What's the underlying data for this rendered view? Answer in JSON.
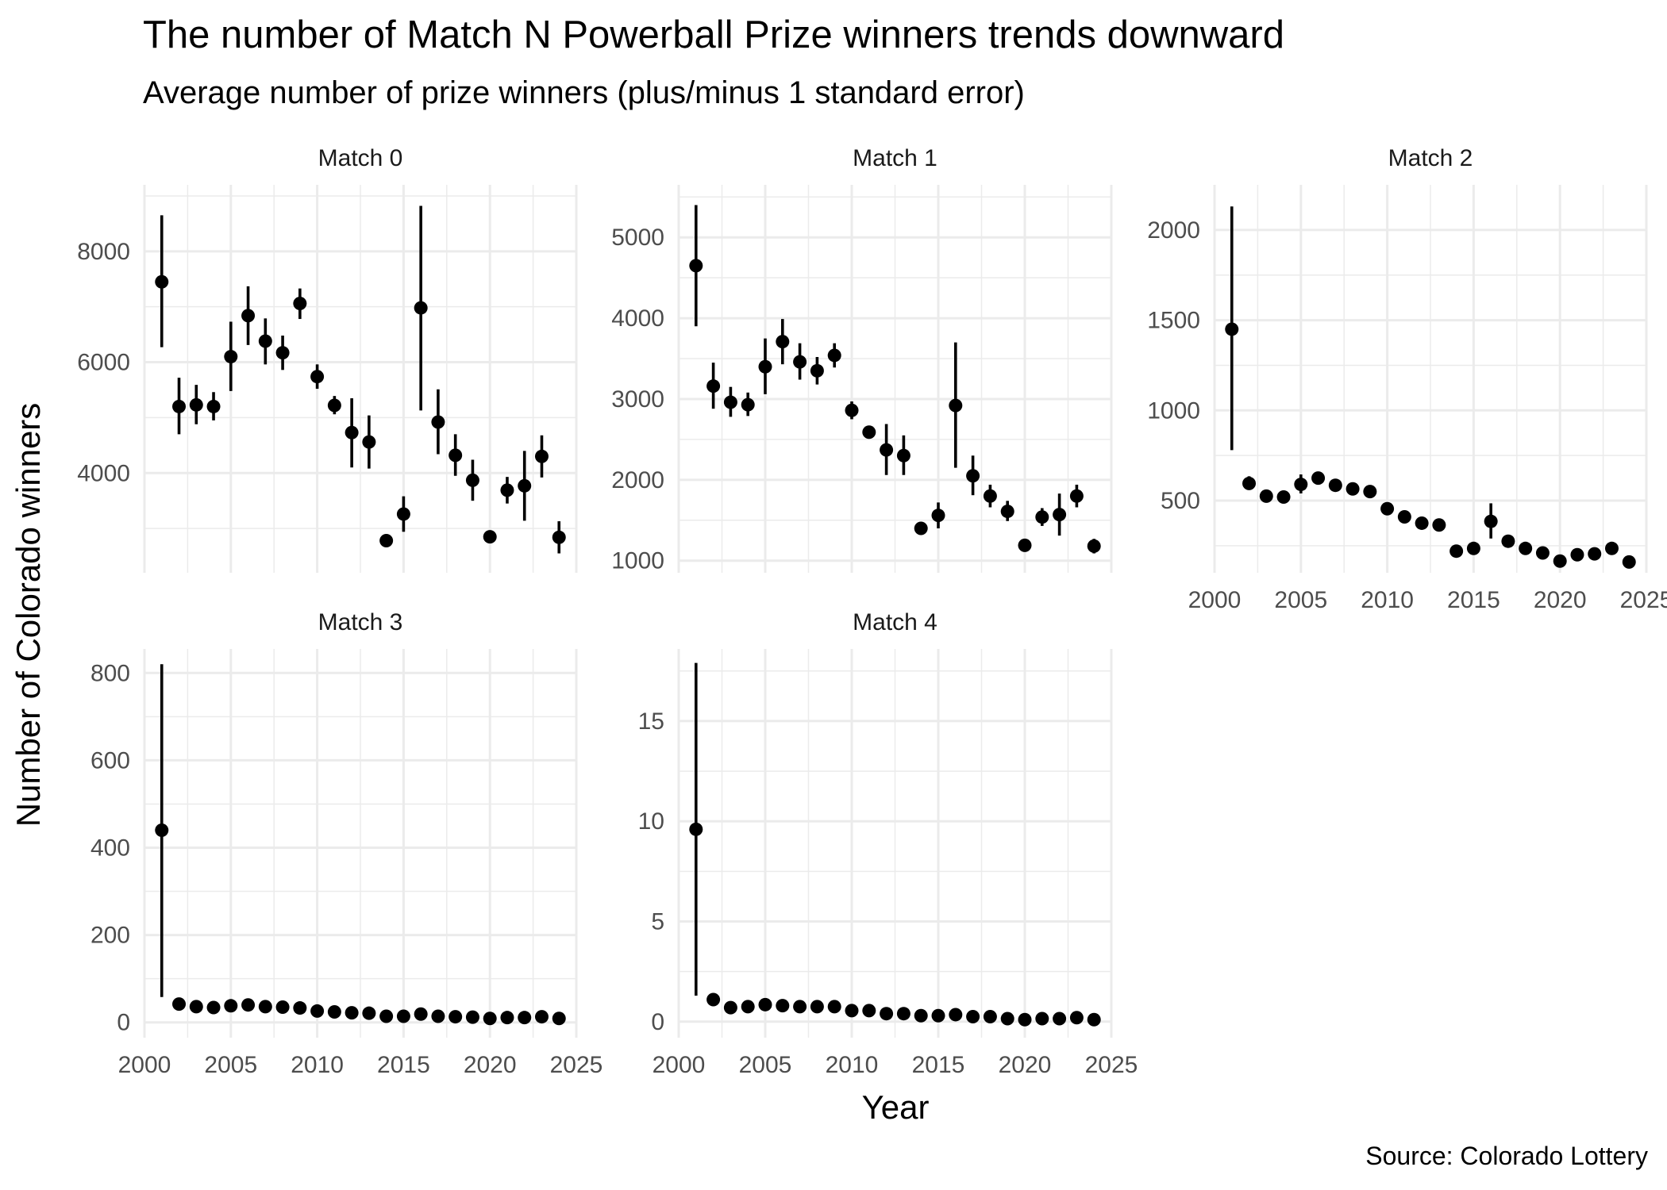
{
  "chart": {
    "title": "The number of Match N Powerball Prize winners trends downward",
    "subtitle": "Average number of prize winners (plus/minus 1 standard error)",
    "xlabel": "Year",
    "ylabel": "Number of Colorado winners",
    "caption": "Source: Colorado Lottery"
  },
  "chart_data": {
    "type": "scatter",
    "style": "point-range (mean with ±1 standard error bars), faceted small multiples, free y scales",
    "grid": true,
    "xlim": [
      2000,
      2025
    ],
    "x_ticks": [
      2000,
      2005,
      2010,
      2015,
      2020,
      2025
    ],
    "years": [
      2001,
      2002,
      2003,
      2004,
      2005,
      2006,
      2007,
      2008,
      2009,
      2010,
      2011,
      2012,
      2013,
      2014,
      2015,
      2016,
      2017,
      2018,
      2019,
      2020,
      2021,
      2022,
      2023,
      2024
    ],
    "panels": [
      {
        "label": "Match 0",
        "ylim": [
          2200,
          9200
        ],
        "y_ticks": [
          4000,
          6000,
          8000
        ],
        "mean": [
          7450,
          5200,
          5230,
          5200,
          6100,
          6840,
          6380,
          6170,
          7060,
          5740,
          5220,
          4730,
          4560,
          2780,
          3260,
          6980,
          4920,
          4320,
          3870,
          2850,
          3690,
          3770,
          4300,
          2840
        ],
        "lower": [
          6270,
          4700,
          4880,
          4950,
          5480,
          6310,
          5960,
          5860,
          6780,
          5520,
          5060,
          4100,
          4080,
          2720,
          2940,
          5130,
          4340,
          3950,
          3500,
          2800,
          3450,
          3140,
          3920,
          2550
        ],
        "upper": [
          8650,
          5720,
          5590,
          5460,
          6730,
          7370,
          6790,
          6480,
          7330,
          5960,
          5390,
          5350,
          5040,
          2840,
          3580,
          8820,
          5510,
          4700,
          4240,
          2900,
          3930,
          4400,
          4680,
          3130
        ]
      },
      {
        "label": "Match 1",
        "ylim": [
          850,
          5650
        ],
        "y_ticks": [
          1000,
          2000,
          3000,
          4000,
          5000
        ],
        "mean": [
          4650,
          3160,
          2960,
          2930,
          3400,
          3710,
          3460,
          3350,
          3540,
          2860,
          2590,
          2370,
          2300,
          1400,
          1560,
          2920,
          2050,
          1800,
          1610,
          1190,
          1540,
          1570,
          1800,
          1180
        ],
        "lower": [
          3900,
          2880,
          2780,
          2790,
          3060,
          3430,
          3240,
          3180,
          3390,
          2750,
          2520,
          2060,
          2060,
          1370,
          1400,
          2150,
          1810,
          1660,
          1490,
          1160,
          1430,
          1310,
          1660,
          1090
        ],
        "upper": [
          5400,
          3450,
          3150,
          3080,
          3750,
          3990,
          3690,
          3520,
          3690,
          2970,
          2660,
          2690,
          2550,
          1430,
          1720,
          3700,
          2300,
          1940,
          1740,
          1220,
          1650,
          1830,
          1940,
          1270
        ]
      },
      {
        "label": "Match 2",
        "ylim": [
          100,
          2250
        ],
        "y_ticks": [
          500,
          1000,
          1500,
          2000
        ],
        "mean": [
          1450,
          595,
          525,
          520,
          590,
          625,
          585,
          565,
          550,
          455,
          410,
          375,
          365,
          220,
          235,
          385,
          275,
          235,
          210,
          165,
          200,
          205,
          235,
          160
        ],
        "lower": [
          780,
          560,
          510,
          505,
          540,
          590,
          565,
          550,
          530,
          440,
          400,
          340,
          350,
          215,
          225,
          290,
          255,
          225,
          200,
          160,
          185,
          180,
          220,
          150
        ],
        "upper": [
          2130,
          635,
          540,
          535,
          645,
          660,
          605,
          580,
          570,
          470,
          420,
          410,
          380,
          225,
          245,
          485,
          300,
          245,
          220,
          170,
          215,
          230,
          250,
          170
        ]
      },
      {
        "label": "Match 3",
        "ylim": [
          -35,
          855
        ],
        "y_ticks": [
          0,
          200,
          400,
          600,
          800
        ],
        "mean": [
          440,
          42,
          36,
          34,
          38,
          40,
          36,
          35,
          33,
          26,
          24,
          22,
          21,
          14,
          14,
          19,
          14,
          13,
          12,
          9,
          11,
          11,
          13,
          9
        ],
        "lower": [
          58,
          39,
          34,
          32,
          35,
          38,
          34,
          33,
          31,
          25,
          23,
          20,
          20,
          13,
          13,
          16,
          13,
          12,
          11,
          8,
          10,
          10,
          12,
          8
        ],
        "upper": [
          820,
          45,
          38,
          36,
          41,
          42,
          38,
          37,
          35,
          27,
          25,
          24,
          22,
          15,
          15,
          22,
          15,
          14,
          13,
          10,
          12,
          12,
          14,
          10
        ]
      },
      {
        "label": "Match 4",
        "ylim": [
          -0.8,
          18.6
        ],
        "y_ticks": [
          0,
          5,
          10,
          15
        ],
        "mean": [
          9.6,
          1.1,
          0.7,
          0.75,
          0.85,
          0.8,
          0.75,
          0.75,
          0.75,
          0.55,
          0.55,
          0.4,
          0.4,
          0.3,
          0.3,
          0.35,
          0.25,
          0.25,
          0.15,
          0.1,
          0.15,
          0.15,
          0.2,
          0.1
        ],
        "lower": [
          1.3,
          1.0,
          0.65,
          0.7,
          0.8,
          0.75,
          0.7,
          0.7,
          0.7,
          0.5,
          0.5,
          0.35,
          0.35,
          0.25,
          0.25,
          0.3,
          0.2,
          0.2,
          0.1,
          0.05,
          0.1,
          0.1,
          0.15,
          0.05
        ],
        "upper": [
          17.9,
          1.2,
          0.75,
          0.8,
          0.9,
          0.85,
          0.8,
          0.8,
          0.8,
          0.6,
          0.6,
          0.45,
          0.45,
          0.35,
          0.35,
          0.4,
          0.3,
          0.3,
          0.2,
          0.15,
          0.2,
          0.2,
          0.25,
          0.15
        ]
      }
    ]
  }
}
